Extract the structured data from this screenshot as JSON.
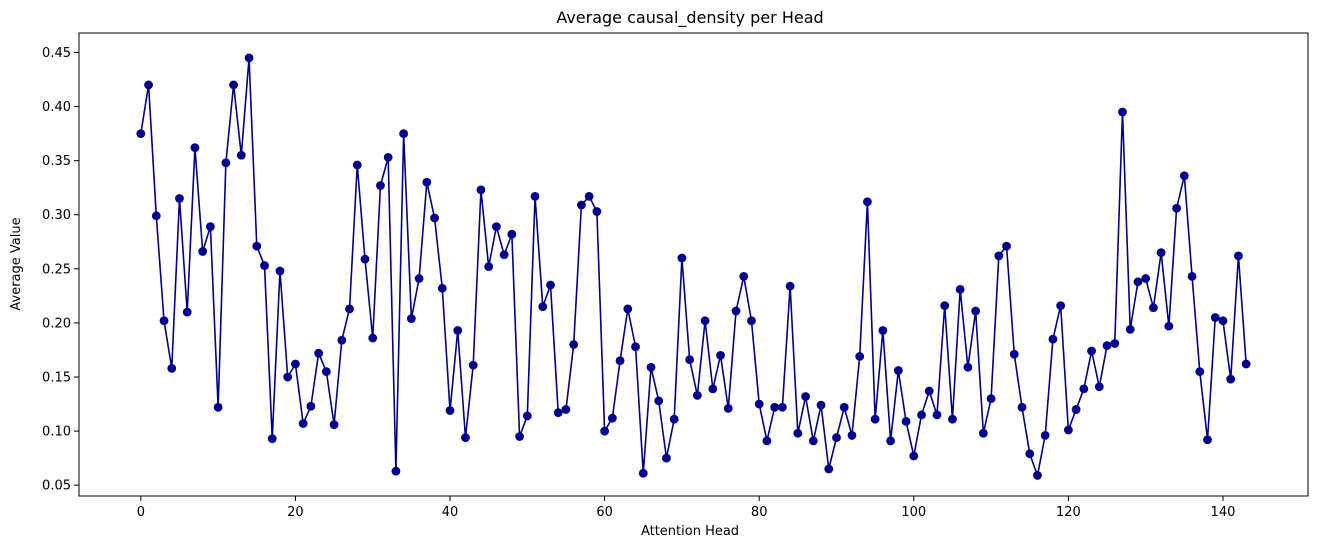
{
  "chart_data": {
    "type": "line",
    "title": "Average causal_density per Head",
    "xlabel": "Attention Head",
    "ylabel": "Average Value",
    "xlim": [
      -8,
      151
    ],
    "ylim": [
      0.04,
      0.468
    ],
    "xticks": [
      0,
      20,
      40,
      60,
      80,
      100,
      120,
      140
    ],
    "yticks": [
      0.05,
      0.1,
      0.15,
      0.2,
      0.25,
      0.3,
      0.35,
      0.4,
      0.45
    ],
    "ytick_labels": [
      "0.05",
      "0.10",
      "0.15",
      "0.20",
      "0.25",
      "0.30",
      "0.35",
      "0.40",
      "0.45"
    ],
    "grid": false,
    "color": "#00008b",
    "marker": "circle",
    "series": [
      {
        "values": [
          0.375,
          0.42,
          0.299,
          0.202,
          0.158,
          0.315,
          0.21,
          0.362,
          0.266,
          0.289,
          0.122,
          0.348,
          0.42,
          0.355,
          0.445,
          0.271,
          0.253,
          0.093,
          0.248,
          0.15,
          0.162,
          0.107,
          0.123,
          0.172,
          0.155,
          0.106,
          0.184,
          0.213,
          0.346,
          0.259,
          0.186,
          0.327,
          0.353,
          0.063,
          0.375,
          0.204,
          0.241,
          0.33,
          0.297,
          0.232,
          0.119,
          0.193,
          0.094,
          0.161,
          0.323,
          0.252,
          0.289,
          0.263,
          0.282,
          0.095,
          0.114,
          0.317,
          0.215,
          0.235,
          0.117,
          0.12,
          0.18,
          0.309,
          0.317,
          0.303,
          0.1,
          0.112,
          0.165,
          0.213,
          0.178,
          0.061,
          0.159,
          0.128,
          0.075,
          0.111,
          0.26,
          0.166,
          0.133,
          0.202,
          0.139,
          0.17,
          0.121,
          0.211,
          0.243,
          0.202,
          0.125,
          0.091,
          0.122,
          0.122,
          0.234,
          0.098,
          0.132,
          0.091,
          0.124,
          0.065,
          0.094,
          0.122,
          0.096,
          0.169,
          0.312,
          0.111,
          0.193,
          0.091,
          0.156,
          0.109,
          0.077,
          0.115,
          0.137,
          0.115,
          0.216,
          0.111,
          0.231,
          0.159,
          0.211,
          0.098,
          0.13,
          0.262,
          0.271,
          0.171,
          0.122,
          0.079,
          0.059,
          0.096,
          0.185,
          0.216,
          0.101,
          0.12,
          0.139,
          0.174,
          0.141,
          0.179,
          0.181,
          0.395,
          0.194,
          0.238,
          0.241,
          0.214,
          0.265,
          0.197,
          0.306,
          0.336,
          0.243,
          0.155,
          0.092,
          0.205,
          0.202,
          0.148,
          0.262,
          0.162
        ]
      }
    ]
  }
}
